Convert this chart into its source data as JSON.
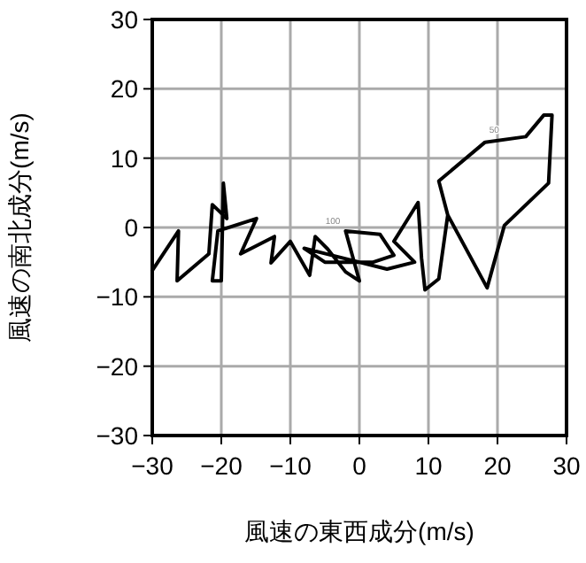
{
  "chart_data": {
    "type": "line",
    "xlabel": "風速の東西成分(m/s)",
    "ylabel": "風速の南北成分(m/s)",
    "xlim": [
      -30,
      30
    ],
    "ylim": [
      -30,
      30
    ],
    "xticks": [
      -30,
      -20,
      -10,
      0,
      10,
      20,
      30
    ],
    "yticks": [
      -30,
      -20,
      -10,
      0,
      10,
      20,
      30
    ],
    "grid": true,
    "marker": "none",
    "line_style": "solid",
    "series": [
      {
        "color": "#000000",
        "x": [
          -30,
          -26.2,
          -26.4,
          -21.8,
          -21.3,
          -19.2,
          -19.7,
          -20,
          -21.3,
          -20.5,
          -14.9,
          -17.2,
          -12.3,
          -12.8,
          -10,
          -7.2,
          -6.4,
          -4.6,
          -2,
          0,
          -2,
          3,
          5,
          2,
          -5,
          -8,
          -4,
          4,
          8,
          5,
          8.5,
          9,
          9.5,
          11.5,
          12.8,
          18.5,
          21,
          27.4,
          27.9,
          26.7,
          24.1,
          18.2,
          11.5,
          12.8
        ],
        "values": [
          -6.2,
          -0.5,
          -7.7,
          -3.8,
          3.3,
          1.3,
          6.4,
          -7.7,
          -7.7,
          -0.5,
          1.3,
          -3.8,
          -1.3,
          -5.1,
          -2,
          -6.9,
          -1.3,
          -3.1,
          -6.4,
          -7.7,
          -0.5,
          -1,
          -4,
          -5,
          -5,
          -3,
          -4,
          -6,
          -5,
          -2,
          3.6,
          -4.4,
          -9,
          -7.4,
          1.8,
          -8.7,
          0.3,
          6.4,
          16.2,
          16.2,
          13.1,
          12.3,
          6.7,
          1.8
        ]
      }
    ],
    "annotations": [
      {
        "text": "100",
        "x": -2,
        "y": -0.5
      },
      {
        "text": "50",
        "x": 21,
        "y": 12.7
      }
    ]
  }
}
